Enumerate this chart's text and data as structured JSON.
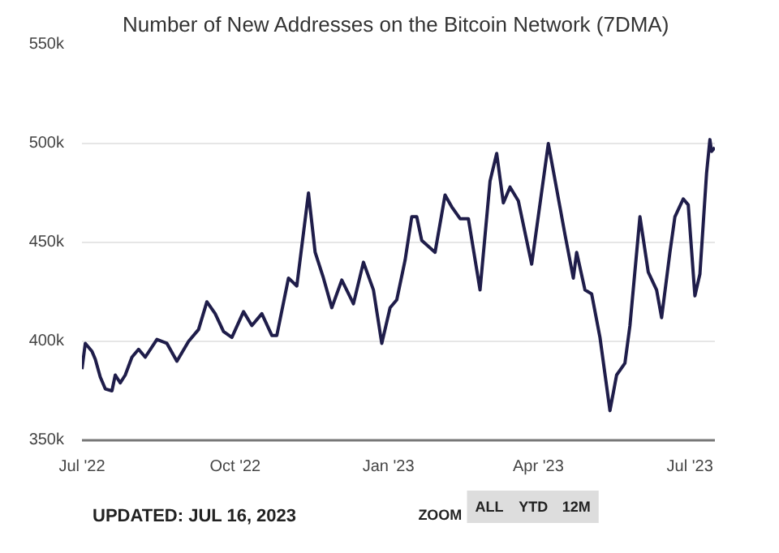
{
  "chart_data": {
    "type": "line",
    "title": "Number of New Addresses on the Bitcoin Network (7DMA)",
    "x": [
      "2022-07-01",
      "2022-07-03",
      "2022-07-07",
      "2022-07-09",
      "2022-07-12",
      "2022-07-15",
      "2022-07-19",
      "2022-07-21",
      "2022-07-24",
      "2022-07-27",
      "2022-07-31",
      "2022-08-04",
      "2022-08-08",
      "2022-08-15",
      "2022-08-21",
      "2022-08-27",
      "2022-09-03",
      "2022-09-09",
      "2022-09-14",
      "2022-09-19",
      "2022-09-24",
      "2022-09-29",
      "2022-10-06",
      "2022-10-11",
      "2022-10-17",
      "2022-10-23",
      "2022-10-26",
      "2022-11-02",
      "2022-11-07",
      "2022-11-14",
      "2022-11-18",
      "2022-11-23",
      "2022-11-28",
      "2022-12-04",
      "2022-12-11",
      "2022-12-17",
      "2022-12-23",
      "2022-12-28",
      "2023-01-02",
      "2023-01-06",
      "2023-01-11",
      "2023-01-15",
      "2023-01-18",
      "2023-01-21",
      "2023-01-29",
      "2023-02-04",
      "2023-02-08",
      "2023-02-13",
      "2023-02-18",
      "2023-02-25",
      "2023-03-03",
      "2023-03-07",
      "2023-03-11",
      "2023-03-15",
      "2023-03-20",
      "2023-03-28",
      "2023-04-07",
      "2023-04-17",
      "2023-04-22",
      "2023-04-24",
      "2023-04-29",
      "2023-05-03",
      "2023-05-08",
      "2023-05-14",
      "2023-05-18",
      "2023-05-23",
      "2023-05-26",
      "2023-06-01",
      "2023-06-06",
      "2023-06-11",
      "2023-06-14",
      "2023-06-19",
      "2023-06-22",
      "2023-06-27",
      "2023-06-30",
      "2023-07-04",
      "2023-07-07",
      "2023-07-11",
      "2023-07-13",
      "2023-07-14",
      "2023-07-16"
    ],
    "series": [
      {
        "color": "#1f1d4a",
        "values": [
          386000,
          399000,
          395000,
          391000,
          382000,
          376000,
          375000,
          383000,
          379000,
          383000,
          392000,
          396000,
          392000,
          401000,
          399000,
          390000,
          400000,
          406000,
          420000,
          414000,
          405000,
          402000,
          415000,
          408000,
          414000,
          403000,
          403000,
          432000,
          428000,
          475000,
          445000,
          432000,
          417000,
          431000,
          419000,
          440000,
          426000,
          399000,
          417000,
          421000,
          441000,
          463000,
          463000,
          451000,
          445000,
          474000,
          468000,
          462000,
          462000,
          426000,
          481000,
          495000,
          470000,
          478000,
          471000,
          439000,
          500000,
          454000,
          432000,
          445000,
          426000,
          424000,
          402000,
          365000,
          383000,
          389000,
          408000,
          463000,
          435000,
          426000,
          412000,
          445000,
          463000,
          472000,
          469000,
          423000,
          434000,
          485000,
          502000,
          496000,
          498000
        ]
      }
    ],
    "xlim": [
      "2022-07-01",
      "2023-07-16"
    ],
    "xticks": [
      {
        "value": "2022-07-01",
        "label": "Jul '22"
      },
      {
        "value": "2022-10-01",
        "label": "Oct '22"
      },
      {
        "value": "2023-01-01",
        "label": "Jan '23"
      },
      {
        "value": "2023-04-01",
        "label": "Apr '23"
      },
      {
        "value": "2023-07-01",
        "label": "Jul '23"
      }
    ],
    "ylim": [
      350000,
      550000
    ],
    "yticks": [
      {
        "value": 350000,
        "label": "350k"
      },
      {
        "value": 400000,
        "label": "400k"
      },
      {
        "value": 450000,
        "label": "450k"
      },
      {
        "value": 500000,
        "label": "500k"
      },
      {
        "value": 550000,
        "label": "550k"
      }
    ],
    "grid": "y",
    "marker": "none",
    "line_style": "solid",
    "annotations": [
      "UPDATED: JUL 16, 2023",
      "ZOOM",
      "ALL",
      "YTD",
      "12M"
    ]
  }
}
